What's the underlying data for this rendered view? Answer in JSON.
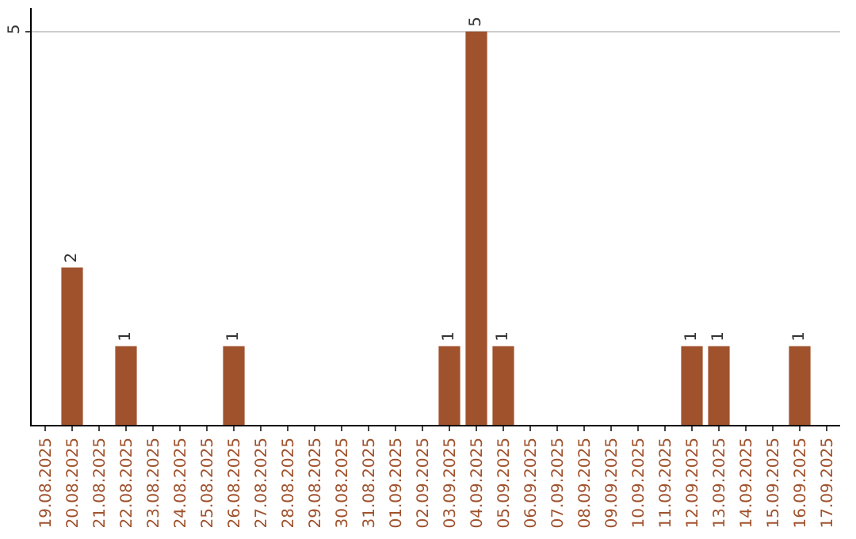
{
  "chart_data": {
    "type": "bar",
    "categories": [
      "19.08.2025",
      "20.08.2025",
      "21.08.2025",
      "22.08.2025",
      "23.08.2025",
      "24.08.2025",
      "25.08.2025",
      "26.08.2025",
      "27.08.2025",
      "28.08.2025",
      "29.08.2025",
      "30.08.2025",
      "31.08.2025",
      "01.09.2025",
      "02.09.2025",
      "03.09.2025",
      "04.09.2025",
      "05.09.2025",
      "06.09.2025",
      "07.09.2025",
      "08.09.2025",
      "09.09.2025",
      "10.09.2025",
      "11.09.2025",
      "12.09.2025",
      "13.09.2025",
      "14.09.2025",
      "15.09.2025",
      "16.09.2025",
      "17.09.2025"
    ],
    "values": [
      0,
      2,
      0,
      1,
      0,
      0,
      0,
      1,
      0,
      0,
      0,
      0,
      0,
      0,
      0,
      1,
      5,
      1,
      0,
      0,
      0,
      0,
      0,
      0,
      1,
      1,
      0,
      0,
      1,
      0
    ],
    "value_labels": [
      null,
      "2",
      null,
      "1",
      null,
      null,
      null,
      "1",
      null,
      null,
      null,
      null,
      null,
      null,
      null,
      "1",
      "5",
      "1",
      null,
      null,
      null,
      null,
      null,
      null,
      "1",
      "1",
      null,
      null,
      "1",
      null
    ],
    "color": "#a0522d",
    "ylim": [
      0,
      5.3
    ],
    "yticks": [
      5
    ],
    "grid": "y"
  }
}
